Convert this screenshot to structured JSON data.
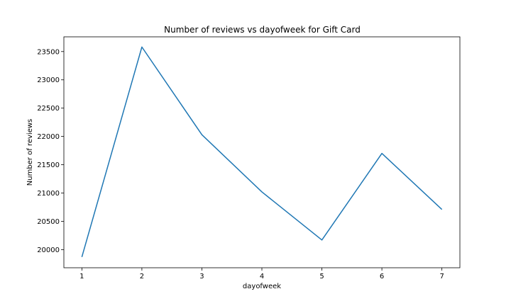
{
  "chart_data": {
    "type": "line",
    "title": "Number of reviews vs dayofweek for Gift Card",
    "xlabel": "dayofweek",
    "ylabel": "Number of reviews",
    "x": [
      1,
      2,
      3,
      4,
      5,
      6,
      7
    ],
    "series": [
      {
        "values": [
          19870,
          23580,
          22030,
          21020,
          20170,
          21700,
          20710
        ]
      }
    ],
    "xlim": [
      0.7,
      7.3
    ],
    "ylim": [
      19680,
      23760
    ],
    "xticks": [
      1,
      2,
      3,
      4,
      5,
      6,
      7
    ],
    "yticks": [
      20000,
      20500,
      21000,
      21500,
      22000,
      22500,
      23000,
      23500
    ],
    "grid": false,
    "line_color": "#1f77b4"
  }
}
